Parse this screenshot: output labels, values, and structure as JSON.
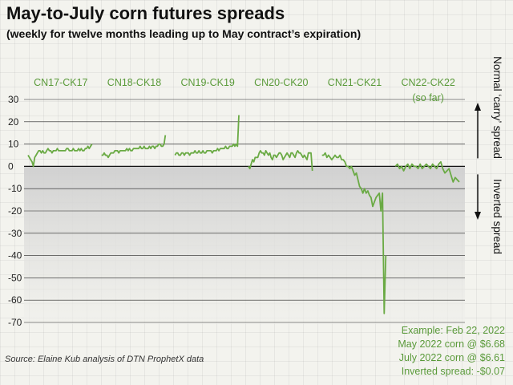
{
  "title": "May-to-July corn futures spreads",
  "subtitle": "(weekly for twelve months leading up to May contract’s expiration)",
  "source": "Source: Elaine Kub analysis of DTN ProphetX data",
  "example": [
    "Example: Feb 22, 2022",
    "May 2022 corn @ $6.68",
    "July 2022 corn @ $6.61",
    "Inverted spread: -$0.07"
  ],
  "colors": {
    "line": "#6aaa44",
    "label": "#5a9a3a",
    "inverted_fill": "#cfcfcf"
  },
  "chart_data": {
    "type": "line",
    "ylim": [
      -70,
      30
    ],
    "yticks": [
      30,
      20,
      10,
      0,
      -10,
      -20,
      -30,
      -40,
      -50,
      -60,
      -70
    ],
    "grid": true,
    "annotations": {
      "top": "Normal ‘carry’ spread",
      "bottom": "Inverted spread"
    },
    "series": [
      {
        "name": "CN17-CK17",
        "sublabel": "",
        "values": [
          5,
          4,
          3,
          2,
          0,
          4,
          5,
          6,
          7,
          7,
          6,
          7,
          6,
          6,
          7,
          8,
          7,
          7,
          6,
          7,
          7,
          7,
          8,
          7,
          7,
          7,
          7,
          7,
          7,
          8,
          8,
          7,
          7,
          7,
          8,
          7,
          7,
          7,
          8,
          7,
          8,
          7,
          7,
          8,
          8,
          9,
          8,
          9,
          10
        ]
      },
      {
        "name": "CN18-CK18",
        "sublabel": "",
        "values": [
          5,
          5,
          6,
          5,
          5,
          4,
          5,
          6,
          6,
          6,
          7,
          7,
          7,
          6,
          7,
          7,
          7,
          7,
          7,
          8,
          7,
          8,
          7,
          7,
          8,
          8,
          8,
          8,
          8,
          9,
          8,
          8,
          9,
          8,
          8,
          8,
          9,
          8,
          9,
          9,
          8,
          9,
          9,
          10,
          10,
          9,
          9,
          10,
          14
        ]
      },
      {
        "name": "CN19-CK19",
        "sublabel": "",
        "values": [
          5,
          6,
          6,
          5,
          5,
          6,
          6,
          5,
          6,
          6,
          6,
          5,
          6,
          6,
          6,
          7,
          6,
          6,
          7,
          6,
          6,
          7,
          6,
          6,
          7,
          7,
          7,
          7,
          6,
          7,
          7,
          7,
          8,
          7,
          8,
          8,
          8,
          8,
          9,
          8,
          8,
          9,
          9,
          9,
          10,
          9,
          10,
          9,
          23
        ]
      },
      {
        "name": "CN20-CK20",
        "sublabel": "",
        "values": [
          0,
          -1,
          1,
          3,
          2,
          4,
          4,
          4,
          6,
          7,
          6,
          6,
          5,
          7,
          6,
          5,
          6,
          4,
          3,
          5,
          5,
          4,
          5,
          6,
          6,
          5,
          3,
          4,
          5,
          6,
          5,
          4,
          6,
          6,
          5,
          4,
          6,
          7,
          6,
          6,
          5,
          4,
          5,
          4,
          3,
          6,
          6,
          6,
          -2
        ]
      },
      {
        "name": "CN21-CK21",
        "sublabel": "",
        "values": [
          5,
          5,
          6,
          4,
          5,
          4,
          3,
          4,
          5,
          4,
          4,
          5,
          3,
          3,
          2,
          0,
          0,
          -1,
          0,
          -2,
          -4,
          -3,
          -6,
          -9,
          -10,
          -12,
          -10,
          -12,
          -11,
          -13,
          -14,
          -18,
          -16,
          -14,
          -13,
          -12,
          -20,
          -12,
          -66,
          -40
        ]
      },
      {
        "name": "CN22-CK22",
        "sublabel": "(so far)",
        "values": [
          0,
          1,
          -1,
          0,
          -2,
          0,
          1,
          -1,
          1,
          0,
          0,
          -1,
          1,
          -1,
          0,
          1,
          0,
          -1,
          1,
          0,
          -1,
          1,
          2,
          -1,
          -3,
          -2,
          -1,
          -4,
          -7,
          -5,
          -6,
          -7
        ]
      }
    ]
  }
}
